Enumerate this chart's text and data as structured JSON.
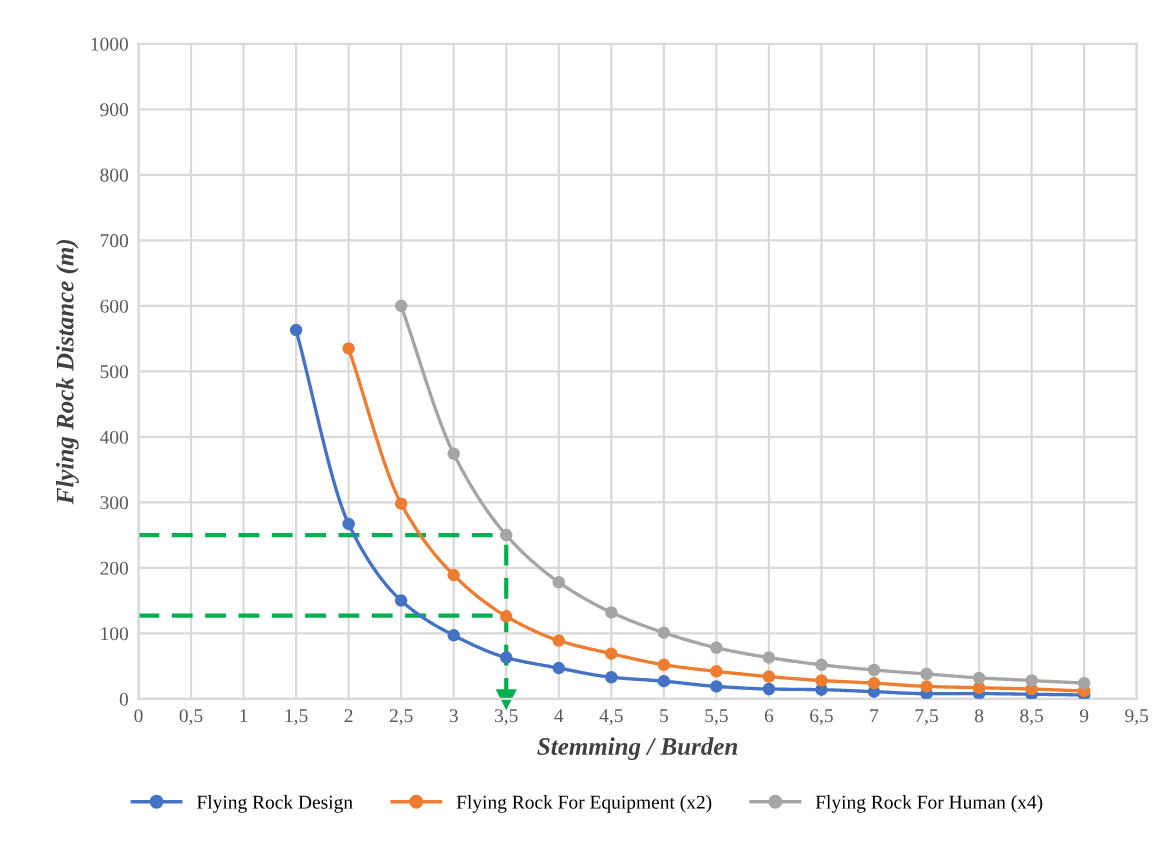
{
  "chart_data": {
    "type": "line",
    "xlabel": "Stemming / Burden",
    "ylabel": "Flying Rock Distance (m)",
    "series": [
      {
        "name": "Flying Rock Design",
        "color": "#4472c4",
        "x": [
          1.5,
          2,
          2.5,
          3,
          3.5,
          4,
          4.5,
          5,
          5.5,
          6,
          6.5,
          7,
          7.5,
          8,
          8.5,
          9
        ],
        "values": [
          563,
          267,
          150,
          97,
          63,
          47,
          33,
          27,
          19,
          15,
          14,
          11,
          8,
          8,
          7,
          6
        ]
      },
      {
        "name": "Flying Rock For Equipment (x2)",
        "color": "#ed7d31",
        "x": [
          2,
          2.5,
          3,
          3.5,
          4,
          4.5,
          5,
          5.5,
          6,
          6.5,
          7,
          7.5,
          8,
          8.5,
          9
        ],
        "values": [
          535,
          298,
          189,
          126,
          89,
          69,
          52,
          42,
          34,
          28,
          24,
          19,
          17,
          15,
          12
        ]
      },
      {
        "name": "Flying Rock For Human (x4)",
        "color": "#a5a5a5",
        "x": [
          2.5,
          3,
          3.5,
          4,
          4.5,
          5,
          5.5,
          6,
          6.5,
          7,
          7.5,
          8,
          8.5,
          9
        ],
        "values": [
          600,
          374,
          250,
          178,
          132,
          101,
          78,
          63,
          52,
          44,
          38,
          32,
          28,
          24
        ]
      }
    ],
    "ref_lines": [
      {
        "axis": "y",
        "value": 250,
        "color": "#00b050",
        "line_style": "dashed"
      },
      {
        "axis": "y",
        "value": 127,
        "color": "#00b050",
        "line_style": "dashed"
      },
      {
        "axis": "x",
        "value": 3.5,
        "color": "#00b050",
        "line_style": "dashed"
      }
    ],
    "xlim": [
      0,
      9.5
    ],
    "ylim": [
      0,
      1000
    ],
    "xticks": [
      0,
      {
        "value": 0.5,
        "label": "0,5"
      },
      1,
      {
        "value": 1.5,
        "label": "1,5"
      },
      2,
      {
        "value": 2.5,
        "label": "2,5"
      },
      3,
      {
        "value": 3.5,
        "label": "3,5"
      },
      4,
      {
        "value": 4.5,
        "label": "4,5"
      },
      5,
      {
        "value": 5.5,
        "label": "5,5"
      },
      6,
      {
        "value": 6.5,
        "label": "6,5"
      },
      7,
      {
        "value": 7.5,
        "label": "7,5"
      },
      8,
      {
        "value": 8.5,
        "label": "8,5"
      },
      9,
      {
        "value": 9.5,
        "label": "9,5"
      }
    ],
    "yticks": [
      0,
      100,
      200,
      300,
      400,
      500,
      600,
      700,
      800,
      900,
      1000
    ],
    "grid": true,
    "legend": "bottom",
    "marker": "circle",
    "line_style": "solid"
  }
}
